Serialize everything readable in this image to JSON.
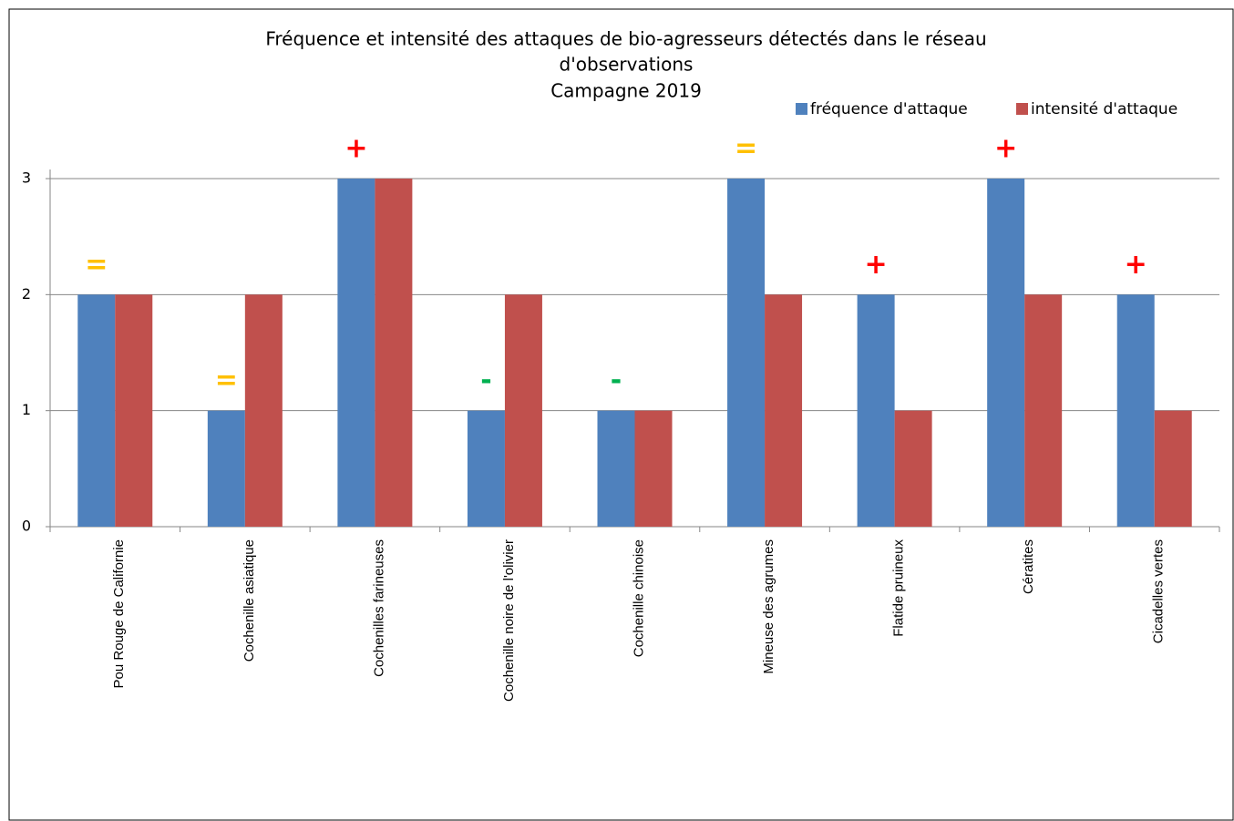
{
  "chart_data": {
    "type": "bar",
    "title": [
      "Fréquence et intensité des attaques de bio-agresseurs détectés dans le réseau",
      "d'observations",
      "Campagne 2019"
    ],
    "categories": [
      "Pou Rouge de Californie",
      "Cochenille asiatique",
      "Cochenilles farineuses",
      "Cochenille noire de l'olivier",
      "Cochenille chinoise",
      "Mineuse des agrumes",
      "Flatide pruineux",
      "Cératites",
      "Cicadelles vertes"
    ],
    "series": [
      {
        "name": "fréquence d'attaque",
        "color": "#4f81bd",
        "values": [
          2,
          1,
          3,
          1,
          1,
          3,
          2,
          3,
          2
        ]
      },
      {
        "name": "intensité d'attaque",
        "color": "#c0504d",
        "values": [
          2,
          2,
          3,
          2,
          1,
          2,
          1,
          2,
          1
        ]
      }
    ],
    "trend_labels": [
      "=",
      "=",
      "+",
      "-",
      "-",
      "=",
      "+",
      "+",
      "+"
    ],
    "trend_colors": [
      "#ffc000",
      "#ffc000",
      "#ff0000",
      "#00b050",
      "#00b050",
      "#ffc000",
      "#ff0000",
      "#ff0000",
      "#ff0000"
    ],
    "ylim": [
      0,
      3
    ],
    "yticks": [
      0,
      1,
      2,
      3
    ],
    "grid": true,
    "legend": "top-right"
  }
}
